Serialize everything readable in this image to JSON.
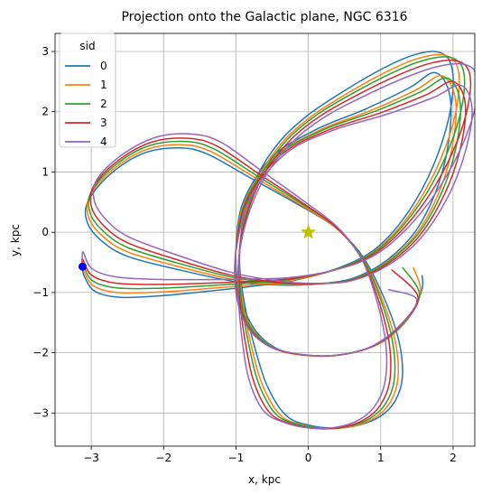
{
  "chart_data": {
    "type": "line",
    "title": "Projection onto the Galactic plane, NGC 6316",
    "xlabel": "x, kpc",
    "ylabel": "y, kpc",
    "xlim": [
      -3.5,
      2.3
    ],
    "ylim": [
      -3.55,
      3.3
    ],
    "xticks": [
      "−3",
      "−2",
      "−1",
      "0",
      "1",
      "2"
    ],
    "yticks": [
      "−3",
      "−2",
      "−1",
      "0",
      "1",
      "2",
      "3"
    ],
    "xtick_values": [
      -3,
      -2,
      -1,
      0,
      1,
      2
    ],
    "ytick_values": [
      -3,
      -2,
      -1,
      0,
      1,
      2,
      3
    ],
    "grid": true,
    "legend": {
      "title": "sid",
      "placement": "top-left"
    },
    "markers": [
      {
        "name": "start-point",
        "x": -3.12,
        "y": -0.57,
        "color": "#0000ff",
        "shape": "circle"
      },
      {
        "name": "galactic-center",
        "x": 0.0,
        "y": 0.0,
        "color": "#bfbf00",
        "shape": "star"
      }
    ],
    "series": [
      {
        "name": "0",
        "color": "#1f77b4",
        "dx": 0.0,
        "dy": 0.0,
        "rot": -0.012,
        "end": [
          1.57,
          -0.71
        ],
        "points": [
          [
            -3.12,
            -0.57
          ],
          [
            -3.1,
            -0.72
          ],
          [
            -2.95,
            -0.98
          ],
          [
            -2.6,
            -1.08
          ],
          [
            -2.0,
            -1.05
          ],
          [
            -1.4,
            -0.98
          ],
          [
            -0.8,
            -0.9
          ],
          [
            -0.2,
            -0.8
          ],
          [
            0.4,
            -0.6
          ],
          [
            0.9,
            -0.3
          ],
          [
            1.3,
            0.2
          ],
          [
            1.65,
            0.9
          ],
          [
            1.9,
            1.7
          ],
          [
            2.0,
            2.4
          ],
          [
            1.95,
            2.85
          ],
          [
            1.75,
            3.0
          ],
          [
            1.4,
            2.92
          ],
          [
            1.0,
            2.7
          ],
          [
            0.5,
            2.35
          ],
          [
            0.0,
            1.95
          ],
          [
            -0.4,
            1.5
          ],
          [
            -0.72,
            0.9
          ],
          [
            -0.9,
            0.2
          ],
          [
            -0.95,
            -0.5
          ],
          [
            -0.88,
            -1.2
          ],
          [
            -0.72,
            -2.0
          ],
          [
            -0.55,
            -2.6
          ],
          [
            -0.3,
            -3.05
          ],
          [
            0.0,
            -3.2
          ],
          [
            0.35,
            -3.25
          ],
          [
            0.7,
            -3.2
          ],
          [
            1.0,
            -3.05
          ],
          [
            1.2,
            -2.8
          ],
          [
            1.3,
            -2.4
          ],
          [
            1.25,
            -1.8
          ],
          [
            1.05,
            -1.1
          ],
          [
            0.75,
            -0.4
          ],
          [
            0.35,
            0.1
          ],
          [
            -0.2,
            0.5
          ],
          [
            -0.8,
            0.9
          ],
          [
            -1.4,
            1.3
          ],
          [
            -1.8,
            1.4
          ],
          [
            -2.3,
            1.3
          ],
          [
            -2.75,
            0.95
          ],
          [
            -3.05,
            0.5
          ],
          [
            -3.05,
            0.15
          ],
          [
            -2.85,
            -0.15
          ],
          [
            -2.5,
            -0.4
          ],
          [
            -1.8,
            -0.62
          ],
          [
            -1.0,
            -0.82
          ],
          [
            -0.3,
            -0.88
          ],
          [
            0.2,
            -0.85
          ],
          [
            0.65,
            -0.75
          ],
          [
            1.1,
            -0.45
          ],
          [
            1.5,
            0.05
          ],
          [
            1.8,
            0.8
          ],
          [
            1.95,
            1.6
          ],
          [
            1.95,
            2.3
          ],
          [
            1.75,
            2.65
          ],
          [
            1.4,
            2.4
          ],
          [
            0.8,
            2.05
          ],
          [
            0.1,
            1.7
          ],
          [
            -0.5,
            1.25
          ],
          [
            -0.9,
            0.5
          ],
          [
            -1.0,
            -0.3
          ],
          [
            -0.95,
            -1.0
          ],
          [
            -0.75,
            -1.6
          ],
          [
            -0.4,
            -1.95
          ],
          [
            0.1,
            -2.05
          ],
          [
            0.6,
            -2.0
          ],
          [
            1.05,
            -1.8
          ],
          [
            1.4,
            -1.4
          ],
          [
            1.57,
            -0.95
          ],
          [
            1.57,
            -0.71
          ]
        ]
      },
      {
        "name": "1",
        "color": "#ff7f0e",
        "dx": 0.01,
        "dy": 0.0,
        "rot": -0.03,
        "end": [
          1.45,
          -0.58
        ],
        "points": []
      },
      {
        "name": "2",
        "color": "#2ca02c",
        "dx": 0.02,
        "dy": 0.01,
        "rot": -0.055,
        "end": [
          1.3,
          -0.58
        ],
        "points": []
      },
      {
        "name": "3",
        "color": "#d62728",
        "dx": 0.03,
        "dy": 0.01,
        "rot": -0.085,
        "end": [
          1.15,
          -0.62
        ],
        "points": []
      },
      {
        "name": "4",
        "color": "#9467bd",
        "dx": 0.05,
        "dy": 0.02,
        "rot": -0.12,
        "end": [
          1.1,
          -0.95
        ],
        "points": []
      }
    ]
  }
}
